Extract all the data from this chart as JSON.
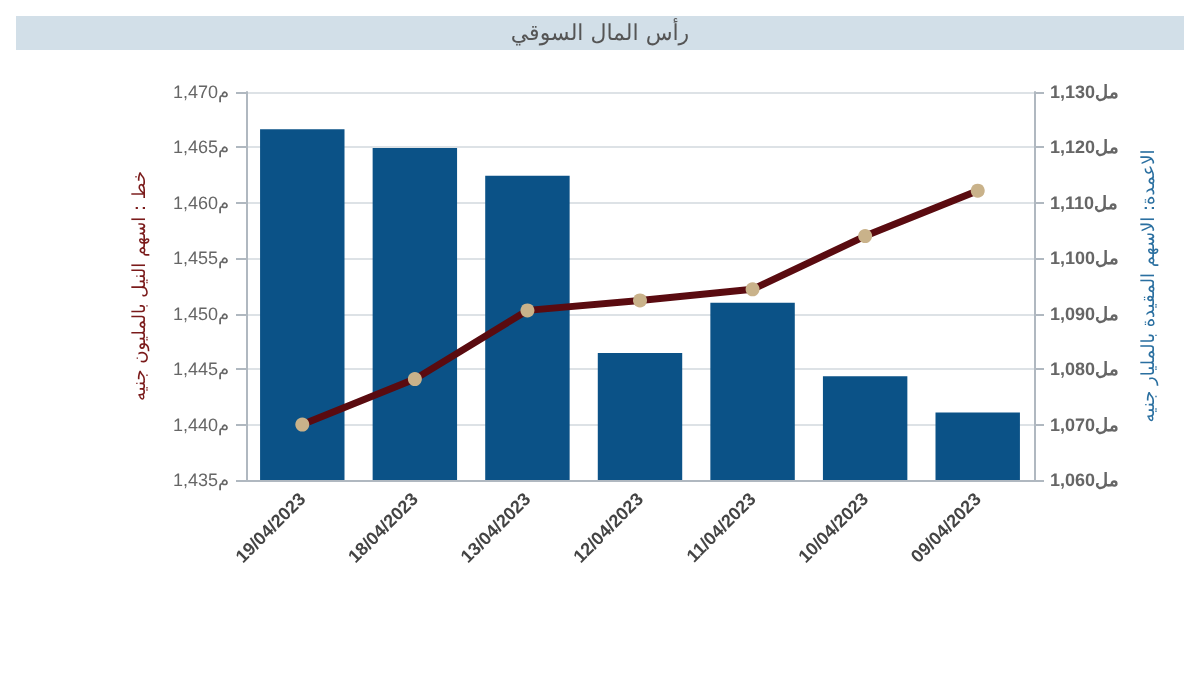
{
  "chart_data": {
    "type": "bar",
    "title": "رأس المال السوقي",
    "categories": [
      "19/04/2023",
      "18/04/2023",
      "13/04/2023",
      "12/04/2023",
      "11/04/2023",
      "10/04/2023",
      "09/04/2023"
    ],
    "series": [
      {
        "axis": "y2",
        "color": "#0b5287",
        "values": [
          1123.3,
          1119.9,
          1114.9,
          1082.9,
          1092.0,
          1078.7,
          1072.2
        ]
      },
      {
        "type": "line",
        "axis": "y",
        "color": "#5a0b10",
        "marker": "circle",
        "values": [
          1440.0,
          1444.1,
          1450.3,
          1451.2,
          1452.2,
          1457.0,
          1461.1
        ]
      }
    ],
    "ylabel": "خط : اسهم النيل بالمليون جنيه",
    "y2label": "الاعمدة: الاسهم المقيدة بالمليار جنيه",
    "ylim": [
      1435,
      1470
    ],
    "yticks": [
      {
        "value": 1435,
        "label": "1,435م"
      },
      {
        "value": 1440,
        "label": "1,440م"
      },
      {
        "value": 1445,
        "label": "1,445م"
      },
      {
        "value": 1450,
        "label": "1,450م"
      },
      {
        "value": 1455,
        "label": "1,455م"
      },
      {
        "value": 1460,
        "label": "1,460م"
      },
      {
        "value": 1465,
        "label": "1,465م"
      },
      {
        "value": 1470,
        "label": "1,470م"
      }
    ],
    "y2lim": [
      1060,
      1130
    ],
    "y2ticks": [
      {
        "value": 1060,
        "label": "1,060مل"
      },
      {
        "value": 1070,
        "label": "1,070مل"
      },
      {
        "value": 1080,
        "label": "1,080مل"
      },
      {
        "value": 1090,
        "label": "1,090مل"
      },
      {
        "value": 1100,
        "label": "1,100مل"
      },
      {
        "value": 1110,
        "label": "1,110مل"
      },
      {
        "value": 1120,
        "label": "1,120مل"
      },
      {
        "value": 1130,
        "label": "1,130مل"
      }
    ],
    "grid": "y"
  }
}
